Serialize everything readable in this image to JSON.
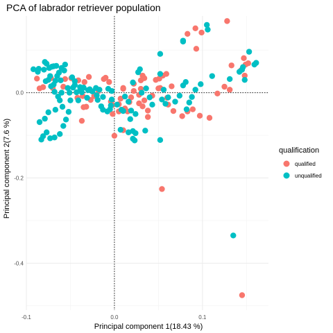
{
  "chart_data": {
    "type": "scatter",
    "title": "PCA of labrador retriever population",
    "xlabel": "Principal component 1(18.43 %)",
    "ylabel": "Principal component 2(7.6 %)",
    "xlim": [
      -0.1,
      0.175
    ],
    "ylim": [
      -0.51,
      0.18
    ],
    "x_ticks": [
      -0.1,
      0.0,
      0.1
    ],
    "x_tick_labels": [
      "-0.1",
      "0.0",
      "0.1"
    ],
    "y_ticks": [
      0.0,
      -0.2,
      -0.4
    ],
    "y_tick_labels": [
      "0.0",
      "-0.2",
      "-0.4"
    ],
    "grid": true,
    "reference_lines": {
      "x": 0,
      "y": 0,
      "style": "dotted"
    },
    "legend": {
      "title": "qualification",
      "placement": "right"
    },
    "series": [
      {
        "name": "qualified",
        "color": "#F8766D",
        "points": [
          [
            0.128,
            0.168
          ],
          [
            0.099,
            0.141
          ],
          [
            0.092,
            0.151
          ],
          [
            0.083,
            0.138
          ],
          [
            0.093,
            0.103
          ],
          [
            0.147,
            0.081
          ],
          [
            0.133,
            0.064
          ],
          [
            0.144,
            0.053
          ],
          [
            0.149,
            0.066
          ],
          [
            0.152,
            0.069
          ],
          [
            0.148,
            0.04
          ],
          [
            0.125,
            0.014
          ],
          [
            0.131,
            0.007
          ],
          [
            0.117,
            -0.002
          ],
          [
            0.108,
            -0.059
          ],
          [
            0.097,
            -0.054
          ],
          [
            0.089,
            -0.039
          ],
          [
            0.083,
            -0.044
          ],
          [
            0.077,
            -0.055
          ],
          [
            0.067,
            -0.043
          ],
          [
            0.061,
            -0.028
          ],
          [
            0.06,
            -0.012
          ],
          [
            0.051,
            0.033
          ],
          [
            0.055,
            0.04
          ],
          [
            0.059,
            0.044
          ],
          [
            0.047,
            0.03
          ],
          [
            0.05,
            0.01
          ],
          [
            0.052,
            0.011
          ],
          [
            0.043,
            -0.007
          ],
          [
            0.038,
            -0.042
          ],
          [
            0.038,
            -0.057
          ],
          [
            0.032,
            -0.032
          ],
          [
            0.034,
            -0.018
          ],
          [
            0.028,
            -0.005
          ],
          [
            0.03,
            0.009
          ],
          [
            0.022,
            0.021
          ],
          [
            0.03,
            0.029
          ],
          [
            0.032,
            0.04
          ],
          [
            0.034,
            0.034
          ],
          [
            0.022,
            0.004
          ],
          [
            0.01,
            0.009
          ],
          [
            0.019,
            -0.011
          ],
          [
            0.017,
            -0.022
          ],
          [
            0.012,
            -0.037
          ],
          [
            0.015,
            -0.044
          ],
          [
            0.007,
            -0.014
          ],
          [
            0.01,
            0.011
          ],
          [
            0.005,
            -0.027
          ],
          [
            -0.002,
            -0.029
          ],
          [
            -0.002,
            -0.05
          ],
          [
            -0.004,
            -0.021
          ],
          [
            -0.006,
            0.025
          ],
          [
            -0.01,
            0.035
          ],
          [
            -0.012,
            0.032
          ],
          [
            -0.018,
            0.004
          ],
          [
            -0.023,
            -0.008
          ],
          [
            -0.027,
            -0.017
          ],
          [
            -0.032,
            -0.033
          ],
          [
            -0.035,
            -0.034
          ],
          [
            -0.029,
            0.037
          ],
          [
            -0.034,
            0.025
          ],
          [
            -0.036,
            -0.008
          ],
          [
            -0.041,
            0.029
          ],
          [
            -0.042,
            -0.012
          ],
          [
            -0.049,
            0.034
          ],
          [
            -0.056,
            0.032
          ],
          [
            -0.058,
            0.014
          ],
          [
            -0.07,
            0.011
          ],
          [
            -0.081,
            0.013
          ],
          [
            -0.085,
            0.01
          ],
          [
            -0.088,
            0.033
          ],
          [
            -0.072,
            0.034
          ],
          [
            -0.037,
            -0.066
          ],
          [
            -0.0,
            -0.101
          ],
          [
            0.01,
            -0.088
          ],
          [
            0.054,
            -0.226
          ],
          [
            0.145,
            -0.475
          ],
          [
            0.005,
            -0.044
          ],
          [
            0.028,
            -0.025
          ],
          [
            0.065,
            0.015
          ]
        ]
      },
      {
        "name": "unqualified",
        "color": "#00BFC4",
        "points": [
          [
            0.105,
            0.159
          ],
          [
            0.106,
            0.148
          ],
          [
            0.078,
            0.122
          ],
          [
            0.078,
            0.12
          ],
          [
            0.111,
            0.039
          ],
          [
            0.098,
            0.02
          ],
          [
            0.081,
            0.025
          ],
          [
            0.078,
            0.017
          ],
          [
            0.092,
            0.007
          ],
          [
            0.088,
            -0.01
          ],
          [
            0.085,
            -0.023
          ],
          [
            0.074,
            -0.007
          ],
          [
            0.069,
            -0.021
          ],
          [
            0.082,
            -0.039
          ],
          [
            0.052,
            0.091
          ],
          [
            0.052,
            0.044
          ],
          [
            0.056,
            0.007
          ],
          [
            0.054,
            -0.016
          ],
          [
            0.058,
            -0.026
          ],
          [
            0.061,
            -0.011
          ],
          [
            0.052,
            -0.111
          ],
          [
            0.135,
            -0.335
          ],
          [
            0.159,
            0.066
          ],
          [
            0.161,
            0.07
          ],
          [
            0.145,
            0.054
          ],
          [
            0.142,
            0.049
          ],
          [
            0.148,
            0.03
          ],
          [
            0.131,
            0.032
          ],
          [
            0.153,
            0.096
          ],
          [
            0.146,
            0.06
          ],
          [
            0.029,
            0.055
          ],
          [
            0.027,
            0.048
          ],
          [
            0.031,
            0.0
          ],
          [
            0.035,
            -0.089
          ],
          [
            0.024,
            -0.095
          ],
          [
            0.021,
            -0.09
          ],
          [
            0.016,
            -0.093
          ],
          [
            0.023,
            -0.112
          ],
          [
            0.021,
            -0.108
          ],
          [
            0.007,
            -0.087
          ],
          [
            0.018,
            -0.062
          ],
          [
            0.024,
            -0.05
          ],
          [
            0.019,
            -0.042
          ],
          [
            0.01,
            -0.043
          ],
          [
            0.016,
            -0.021
          ],
          [
            0.012,
            -0.009
          ],
          [
            -0.003,
            -0.016
          ],
          [
            -0.004,
            -0.03
          ],
          [
            -0.005,
            -0.039
          ],
          [
            -0.008,
            -0.044
          ],
          [
            -0.015,
            -0.032
          ],
          [
            -0.013,
            -0.01
          ],
          [
            -0.019,
            -0.017
          ],
          [
            -0.02,
            -0.006
          ],
          [
            -0.025,
            0.003
          ],
          [
            -0.031,
            -0.012
          ],
          [
            -0.03,
            0.006
          ],
          [
            -0.037,
            0.001
          ],
          [
            -0.039,
            0.005
          ],
          [
            -0.041,
            -0.018
          ],
          [
            -0.047,
            0.012
          ],
          [
            -0.051,
            0.0
          ],
          [
            -0.053,
            0.011
          ],
          [
            -0.045,
            0.018
          ],
          [
            -0.039,
            0.013
          ],
          [
            -0.057,
            0.052
          ],
          [
            -0.056,
            0.066
          ],
          [
            -0.06,
            0.058
          ],
          [
            -0.063,
            0.047
          ],
          [
            -0.066,
            0.063
          ],
          [
            -0.069,
            0.062
          ],
          [
            -0.071,
            0.061
          ],
          [
            -0.074,
            0.058
          ],
          [
            -0.077,
            0.068
          ],
          [
            -0.079,
            0.072
          ],
          [
            -0.08,
            0.054
          ],
          [
            -0.086,
            0.056
          ],
          [
            -0.087,
            0.049
          ],
          [
            -0.092,
            0.055
          ],
          [
            -0.073,
            0.039
          ],
          [
            -0.075,
            0.03
          ],
          [
            -0.078,
            0.027
          ],
          [
            -0.061,
            0.029
          ],
          [
            -0.065,
            0.039
          ],
          [
            -0.067,
            0.028
          ],
          [
            -0.069,
            0.019
          ],
          [
            -0.072,
            0.015
          ],
          [
            -0.068,
            0.002
          ],
          [
            -0.064,
            -0.009
          ],
          [
            -0.06,
            0.0
          ],
          [
            -0.062,
            -0.018
          ],
          [
            -0.059,
            -0.033
          ],
          [
            -0.05,
            -0.018
          ],
          [
            -0.052,
            -0.045
          ],
          [
            -0.055,
            -0.063
          ],
          [
            -0.058,
            -0.078
          ],
          [
            -0.062,
            -0.097
          ],
          [
            -0.068,
            -0.105
          ],
          [
            -0.073,
            -0.107
          ],
          [
            -0.077,
            -0.093
          ],
          [
            -0.079,
            -0.061
          ],
          [
            -0.075,
            -0.046
          ],
          [
            -0.067,
            -0.04
          ],
          [
            -0.048,
            0.036
          ],
          [
            -0.045,
            0.027
          ],
          [
            -0.043,
            0.001
          ],
          [
            -0.035,
            0.012
          ],
          [
            -0.028,
            0.008
          ],
          [
            -0.021,
            0.011
          ],
          [
            -0.017,
            0.007
          ],
          [
            -0.007,
            0.009
          ],
          [
            -0.003,
            0.004
          ],
          [
            0.021,
            0.024
          ],
          [
            0.008,
            -0.04
          ],
          [
            0.003,
            -0.028
          ],
          [
            -0.013,
            -0.04
          ],
          [
            0.04,
            -0.011
          ],
          [
            0.043,
            -0.028
          ],
          [
            0.036,
            0.01
          ],
          [
            -0.085,
            -0.069
          ],
          [
            -0.083,
            -0.11
          ],
          [
            -0.081,
            -0.102
          ]
        ]
      }
    ]
  }
}
